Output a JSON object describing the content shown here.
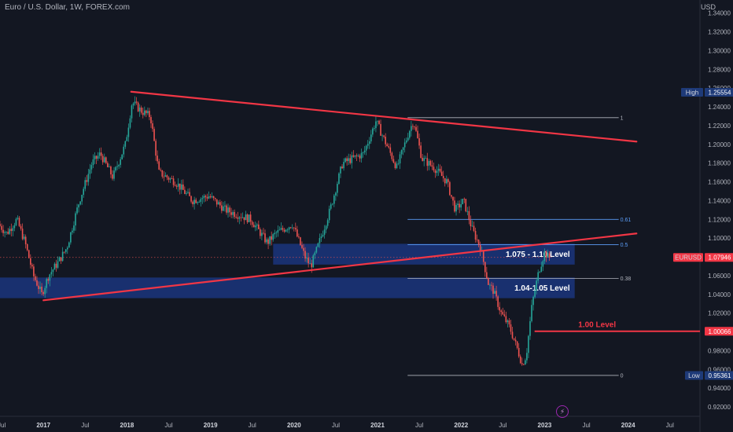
{
  "header": {
    "symbol_title": "Euro / U.S. Dollar, 1W, FOREX.com",
    "currency": "USD"
  },
  "colors": {
    "background": "#131722",
    "bull": "#26a69a",
    "bear": "#ef5350",
    "trendline": "#f23645",
    "zone": "#1c3a8a",
    "fib": "#b2b5be",
    "fib_mid": "#5b9cf6",
    "label_blue": "#1e3a78",
    "label_red": "#f23645"
  },
  "chart_data": {
    "type": "candlestick",
    "ylim": [
      0.91,
      1.354
    ],
    "xlim": [
      2016.48,
      2024.86
    ],
    "yticks": [
      "1.34000",
      "1.32000",
      "1.30000",
      "1.28000",
      "1.26000",
      "1.24000",
      "1.22000",
      "1.20000",
      "1.18000",
      "1.16000",
      "1.14000",
      "1.12000",
      "1.10000",
      "1.08000",
      "1.06000",
      "1.04000",
      "1.02000",
      "1.00000",
      "0.98000",
      "0.96000",
      "0.94000",
      "0.92000"
    ],
    "xticks": [
      {
        "label": "Jul",
        "t": 2016.5
      },
      {
        "label": "2017",
        "t": 2017.0,
        "year": true
      },
      {
        "label": "Jul",
        "t": 2017.5
      },
      {
        "label": "2018",
        "t": 2018.0,
        "year": true
      },
      {
        "label": "Jul",
        "t": 2018.5
      },
      {
        "label": "2019",
        "t": 2019.0,
        "year": true
      },
      {
        "label": "Jul",
        "t": 2019.5
      },
      {
        "label": "2020",
        "t": 2020.0,
        "year": true
      },
      {
        "label": "Jul",
        "t": 2020.5
      },
      {
        "label": "2021",
        "t": 2021.0,
        "year": true
      },
      {
        "label": "Jul",
        "t": 2021.5
      },
      {
        "label": "2022",
        "t": 2022.0,
        "year": true
      },
      {
        "label": "Jul",
        "t": 2022.5
      },
      {
        "label": "2023",
        "t": 2023.0,
        "year": true
      },
      {
        "label": "Jul",
        "t": 2023.5
      },
      {
        "label": "2024",
        "t": 2024.0,
        "year": true
      },
      {
        "label": "Jul",
        "t": 2024.5
      }
    ],
    "price_path": [
      {
        "t": 2016.48,
        "p": 1.115
      },
      {
        "t": 2016.58,
        "p": 1.105
      },
      {
        "t": 2016.7,
        "p": 1.12
      },
      {
        "t": 2016.8,
        "p": 1.095
      },
      {
        "t": 2016.9,
        "p": 1.06
      },
      {
        "t": 2017.0,
        "p": 1.04
      },
      {
        "t": 2017.08,
        "p": 1.06
      },
      {
        "t": 2017.2,
        "p": 1.075
      },
      {
        "t": 2017.3,
        "p": 1.09
      },
      {
        "t": 2017.45,
        "p": 1.14
      },
      {
        "t": 2017.6,
        "p": 1.18
      },
      {
        "t": 2017.7,
        "p": 1.19
      },
      {
        "t": 2017.85,
        "p": 1.165
      },
      {
        "t": 2018.0,
        "p": 1.2
      },
      {
        "t": 2018.08,
        "p": 1.245
      },
      {
        "t": 2018.2,
        "p": 1.235
      },
      {
        "t": 2018.3,
        "p": 1.23
      },
      {
        "t": 2018.4,
        "p": 1.17
      },
      {
        "t": 2018.6,
        "p": 1.16
      },
      {
        "t": 2018.8,
        "p": 1.14
      },
      {
        "t": 2019.0,
        "p": 1.145
      },
      {
        "t": 2019.2,
        "p": 1.13
      },
      {
        "t": 2019.5,
        "p": 1.12
      },
      {
        "t": 2019.7,
        "p": 1.095
      },
      {
        "t": 2019.8,
        "p": 1.105
      },
      {
        "t": 2020.0,
        "p": 1.115
      },
      {
        "t": 2020.15,
        "p": 1.08
      },
      {
        "t": 2020.22,
        "p": 1.07
      },
      {
        "t": 2020.3,
        "p": 1.09
      },
      {
        "t": 2020.45,
        "p": 1.13
      },
      {
        "t": 2020.6,
        "p": 1.18
      },
      {
        "t": 2020.85,
        "p": 1.19
      },
      {
        "t": 2021.0,
        "p": 1.225
      },
      {
        "t": 2021.1,
        "p": 1.205
      },
      {
        "t": 2021.25,
        "p": 1.175
      },
      {
        "t": 2021.4,
        "p": 1.215
      },
      {
        "t": 2021.45,
        "p": 1.225
      },
      {
        "t": 2021.55,
        "p": 1.185
      },
      {
        "t": 2021.7,
        "p": 1.175
      },
      {
        "t": 2021.85,
        "p": 1.16
      },
      {
        "t": 2021.95,
        "p": 1.13
      },
      {
        "t": 2022.05,
        "p": 1.14
      },
      {
        "t": 2022.15,
        "p": 1.11
      },
      {
        "t": 2022.25,
        "p": 1.09
      },
      {
        "t": 2022.35,
        "p": 1.05
      },
      {
        "t": 2022.4,
        "p": 1.045
      },
      {
        "t": 2022.5,
        "p": 1.02
      },
      {
        "t": 2022.6,
        "p": 1.005
      },
      {
        "t": 2022.7,
        "p": 0.98
      },
      {
        "t": 2022.75,
        "p": 0.965
      },
      {
        "t": 2022.8,
        "p": 0.975
      },
      {
        "t": 2022.87,
        "p": 1.03
      },
      {
        "t": 2022.95,
        "p": 1.065
      },
      {
        "t": 2023.02,
        "p": 1.085
      },
      {
        "t": 2023.06,
        "p": 1.0795
      }
    ],
    "trendlines": [
      {
        "name": "upper-falling-trendline",
        "from": {
          "t": 2018.05,
          "p": 1.2562
        },
        "to": {
          "t": 2024.1,
          "p": 1.203
        }
      },
      {
        "name": "lower-rising-trendline",
        "from": {
          "t": 2017.0,
          "p": 1.0337
        },
        "to": {
          "t": 2024.1,
          "p": 1.105
        }
      }
    ],
    "zones": [
      {
        "name": "zone-1075-110",
        "t_start": 2019.75,
        "t_end": 2023.36,
        "p_low": 1.0718,
        "p_high": 1.094,
        "label": "1.075 - 1.10 Level"
      },
      {
        "name": "zone-104-105",
        "t_start": 2016.48,
        "t_end": 2023.36,
        "p_low": 1.036,
        "p_high": 1.058,
        "label": "1.04-1.05 Level"
      }
    ],
    "horizontal_level": {
      "name": "parity-level",
      "t_start": 2022.88,
      "t_end": 2024.86,
      "p": 1.0007,
      "label": "1.00 Level"
    },
    "fib_retracement": {
      "t_start": 2021.36,
      "t_end": 2024.0,
      "label_t": 2024.0,
      "levels": [
        {
          "label": "1",
          "p": 1.2285,
          "color_key": "fib"
        },
        {
          "label": "0.61",
          "p": 1.12,
          "color_key": "fib_mid"
        },
        {
          "label": "0.5",
          "p": 1.093,
          "color_key": "fib_mid"
        },
        {
          "label": "0.38",
          "p": 1.057,
          "color_key": "fib"
        },
        {
          "label": "0",
          "p": 0.9536,
          "color_key": "fib"
        }
      ]
    },
    "current_price_line": {
      "p": 1.0795,
      "t_start": 2016.48,
      "t_end": 2023.1
    },
    "price_labels": [
      {
        "name": "high-label",
        "side": "High",
        "text": "1.25554",
        "p": 1.25554,
        "color_key": "label_blue"
      },
      {
        "name": "last-price-label",
        "side": "EURUSD",
        "text": "1.07946",
        "p": 1.07946,
        "color_key": "label_red"
      },
      {
        "name": "parity-price-label",
        "side": "",
        "text": "1.00066",
        "p": 1.00066,
        "color_key": "label_red"
      },
      {
        "name": "low-label",
        "side": "Low",
        "text": "0.95361",
        "p": 0.95361,
        "color_key": "label_blue"
      }
    ]
  }
}
